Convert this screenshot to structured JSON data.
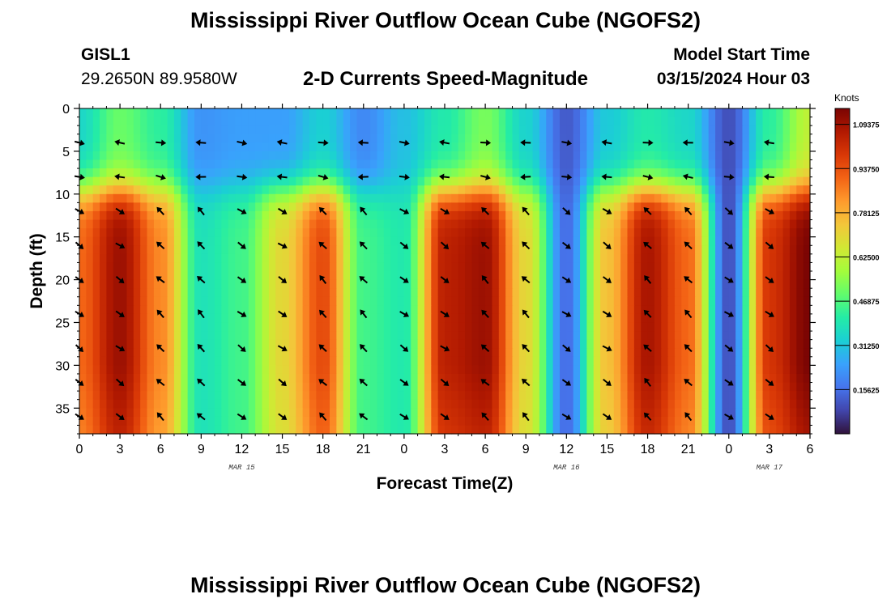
{
  "page": {
    "title": "Mississippi River Outflow Ocean Cube (NGOFS2)",
    "title_repeat": "Mississippi River Outflow Ocean Cube (NGOFS2)",
    "station_id": "GISL1",
    "station_coords": "29.2650N  89.9580W",
    "subtitle": "2-D Currents Speed-Magnitude",
    "model_start_label": "Model Start Time",
    "model_start_value": "03/15/2024 Hour 03"
  },
  "colors": {
    "colormap": [
      "#30123b",
      "#4145ab",
      "#4675ed",
      "#39a2fc",
      "#1bcfd4",
      "#24eca6",
      "#61fc6c",
      "#a4fc3b",
      "#d1e834",
      "#f3c63a",
      "#fe9b2d",
      "#f36315",
      "#d93806",
      "#b11901",
      "#7a0403"
    ],
    "arrow": "#000000"
  },
  "chart_data": {
    "type": "heatmap",
    "xlabel": "Forecast Time(Z)",
    "ylabel": "Depth (ft)",
    "x_range_hours": [
      0,
      54
    ],
    "y_range_ft": [
      0,
      38
    ],
    "x_ticks": [
      {
        "hour": 0,
        "label": "0"
      },
      {
        "hour": 3,
        "label": "3"
      },
      {
        "hour": 6,
        "label": "6"
      },
      {
        "hour": 9,
        "label": "9"
      },
      {
        "hour": 12,
        "label": "12"
      },
      {
        "hour": 15,
        "label": "15"
      },
      {
        "hour": 18,
        "label": "18"
      },
      {
        "hour": 21,
        "label": "21"
      },
      {
        "hour": 24,
        "label": "0"
      },
      {
        "hour": 27,
        "label": "3"
      },
      {
        "hour": 30,
        "label": "6"
      },
      {
        "hour": 33,
        "label": "9"
      },
      {
        "hour": 36,
        "label": "12"
      },
      {
        "hour": 39,
        "label": "15"
      },
      {
        "hour": 42,
        "label": "18"
      },
      {
        "hour": 45,
        "label": "21"
      },
      {
        "hour": 48,
        "label": "0"
      },
      {
        "hour": 51,
        "label": "3"
      },
      {
        "hour": 54,
        "label": "6"
      }
    ],
    "date_labels": [
      {
        "hour": 12,
        "label": "MAR 15"
      },
      {
        "hour": 36,
        "label": "MAR 16"
      },
      {
        "hour": 51,
        "label": "MAR 17"
      }
    ],
    "y_ticks": [
      0,
      5,
      10,
      15,
      20,
      25,
      30,
      35
    ],
    "colorbar": {
      "title": "Knots",
      "range": [
        0.0,
        1.15
      ],
      "ticks": [
        "1.09375",
        "0.93750",
        "0.78125",
        "0.62500",
        "0.46875",
        "0.31250",
        "0.15625"
      ]
    },
    "arrow_depths_ft": [
      4,
      8,
      12,
      16,
      20,
      24,
      28,
      32,
      36
    ],
    "arrow_hours": [
      0,
      3,
      6,
      9,
      12,
      15,
      18,
      21,
      24,
      27,
      30,
      33,
      36,
      39,
      42,
      45,
      48,
      51
    ],
    "surface_layer_speed": [
      {
        "hour": 0,
        "knots": 0.35
      },
      {
        "hour": 3,
        "knots": 0.5
      },
      {
        "hour": 6,
        "knots": 0.42
      },
      {
        "hour": 9,
        "knots": 0.22
      },
      {
        "hour": 12,
        "knots": 0.24
      },
      {
        "hour": 15,
        "knots": 0.24
      },
      {
        "hour": 18,
        "knots": 0.33
      },
      {
        "hour": 21,
        "knots": 0.2
      },
      {
        "hour": 24,
        "knots": 0.3
      },
      {
        "hour": 27,
        "knots": 0.4
      },
      {
        "hour": 30,
        "knots": 0.52
      },
      {
        "hour": 33,
        "knots": 0.34
      },
      {
        "hour": 36,
        "knots": 0.12
      },
      {
        "hour": 39,
        "knots": 0.32
      },
      {
        "hour": 42,
        "knots": 0.4
      },
      {
        "hour": 45,
        "knots": 0.35
      },
      {
        "hour": 48,
        "knots": 0.1
      },
      {
        "hour": 51,
        "knots": 0.42
      },
      {
        "hour": 54,
        "knots": 0.62
      }
    ],
    "deep_layer_speed": [
      {
        "hour": 0,
        "knots": 0.9
      },
      {
        "hour": 3,
        "knots": 1.1
      },
      {
        "hour": 6,
        "knots": 0.85
      },
      {
        "hour": 9,
        "knots": 0.38
      },
      {
        "hour": 12,
        "knots": 0.45
      },
      {
        "hour": 15,
        "knots": 0.7
      },
      {
        "hour": 18,
        "knots": 0.95
      },
      {
        "hour": 21,
        "knots": 0.45
      },
      {
        "hour": 24,
        "knots": 0.4
      },
      {
        "hour": 27,
        "knots": 1.05
      },
      {
        "hour": 30,
        "knots": 1.1
      },
      {
        "hour": 33,
        "knots": 0.7
      },
      {
        "hour": 36,
        "knots": 0.15
      },
      {
        "hour": 39,
        "knots": 0.75
      },
      {
        "hour": 42,
        "knots": 1.08
      },
      {
        "hour": 45,
        "knots": 0.9
      },
      {
        "hour": 48,
        "knots": 0.1
      },
      {
        "hour": 51,
        "knots": 1.0
      },
      {
        "hour": 54,
        "knots": 1.15
      }
    ]
  }
}
